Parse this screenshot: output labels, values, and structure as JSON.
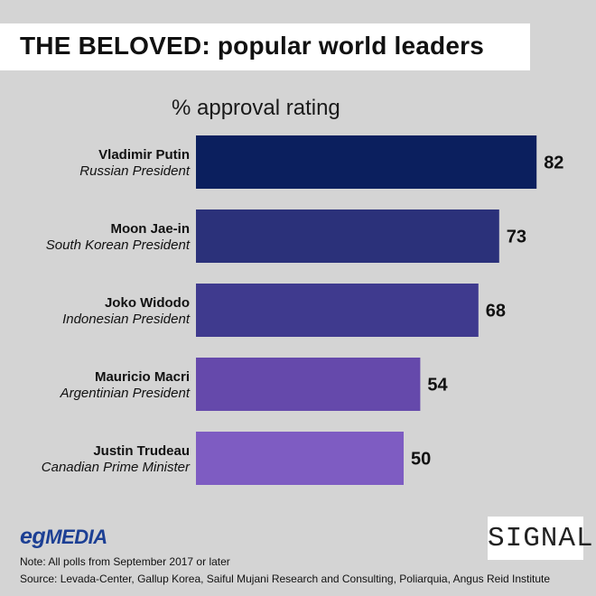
{
  "title": "THE BELOVED: popular world leaders",
  "chart_data": {
    "type": "bar",
    "orientation": "horizontal",
    "title": "THE BELOVED: popular world leaders",
    "xlabel": "% approval rating",
    "ylabel": "",
    "xlim": [
      0,
      100
    ],
    "categories": [
      "Vladimir Putin",
      "Moon Jae-in",
      "Joko Widodo",
      "Mauricio Macri",
      "Justin Trudeau"
    ],
    "roles": [
      "Russian President",
      "South Korean President",
      "Indonesian President",
      "Argentinian President",
      "Canadian Prime Minister"
    ],
    "values": [
      82,
      73,
      68,
      54,
      50
    ],
    "colors": [
      "#0b1f5e",
      "#2b317a",
      "#3f3a8e",
      "#6549ab",
      "#7e5cc2"
    ]
  },
  "footer": {
    "logo_left": "egMEDIA",
    "logo_left_prefix": "eg",
    "logo_left_suffix": "MEDIA",
    "logo_right": "SIGNAL",
    "note": "Note: All polls from September 2017 or later",
    "source": "Source: Levada-Center, Gallup Korea, Saiful Mujani Research and Consulting, Poliarquia, Angus Reid Institute"
  },
  "colors": {
    "background": "#d4d4d4",
    "brand_blue": "#1c3f94"
  }
}
